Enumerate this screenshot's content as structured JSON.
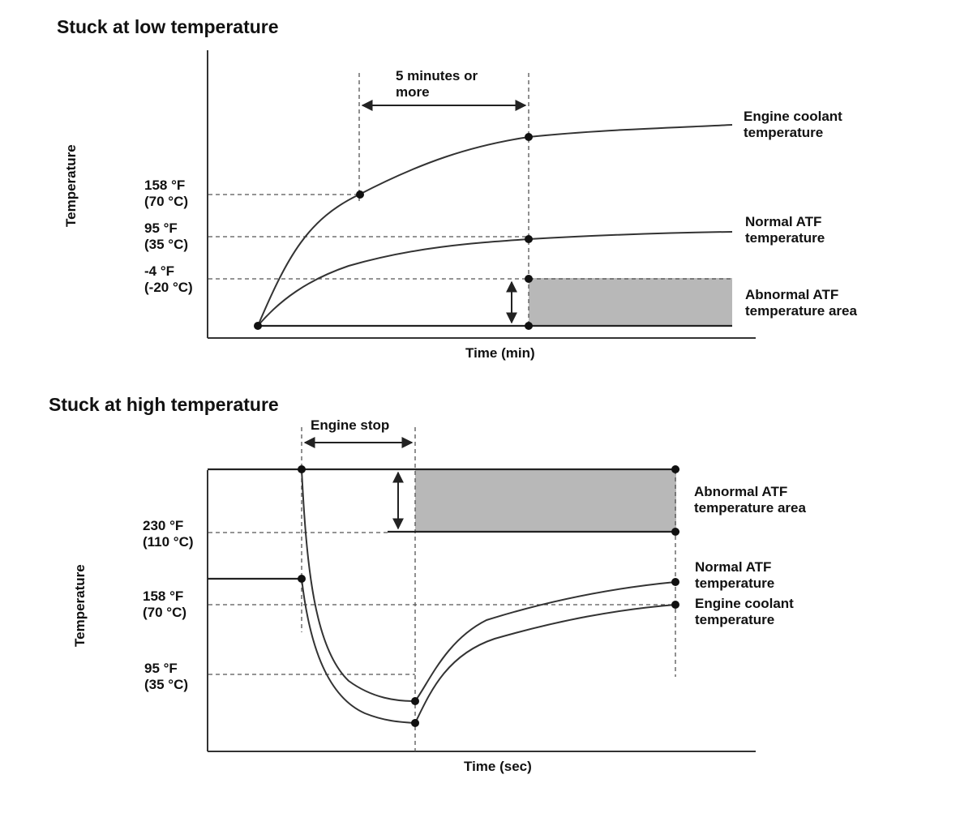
{
  "low": {
    "title": "Stuck at low temperature",
    "y_axis": "Temperature",
    "x_axis": "Time (min)",
    "interval": [
      "5 minutes or",
      "more"
    ],
    "ticks": {
      "t158": [
        "158 °F",
        "(70 °C)"
      ],
      "t95": [
        "95 °F",
        "(35 °C)"
      ],
      "tm4": [
        "-4 °F",
        "(-20 °C)"
      ]
    },
    "series": {
      "coolant": [
        "Engine coolant",
        "temperature"
      ],
      "normal": [
        "Normal ATF",
        "temperature"
      ],
      "abnormal": [
        "Abnormal ATF",
        "temperature area"
      ]
    }
  },
  "high": {
    "title": "Stuck at high temperature",
    "y_axis": "Temperature",
    "x_axis": "Time (sec)",
    "interval": "Engine stop",
    "ticks": {
      "t230": [
        "230 °F",
        "(110 °C)"
      ],
      "t158": [
        "158 °F",
        "(70 °C)"
      ],
      "t95": [
        "95 °F",
        "(35 °C)"
      ]
    },
    "series": {
      "abnormal": [
        "Abnormal ATF",
        "temperature area"
      ],
      "normal": [
        "Normal ATF",
        "temperature"
      ],
      "coolant": [
        "Engine coolant",
        "temperature"
      ]
    }
  },
  "colors": {
    "line": "#333333",
    "area": "#b8b8b8",
    "text": "#111111"
  }
}
